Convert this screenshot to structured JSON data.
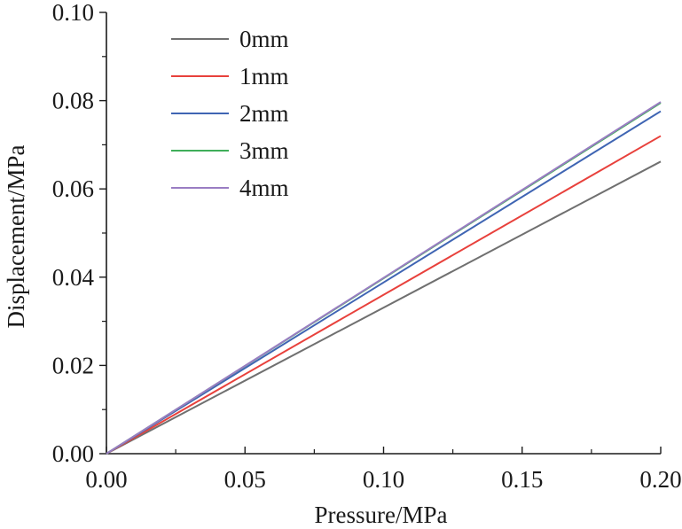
{
  "chart_data": {
    "type": "line",
    "title": "",
    "xlabel": "Pressure/MPa",
    "ylabel": "Displacement/MPa",
    "xlim": [
      0,
      0.2
    ],
    "ylim": [
      0,
      0.1
    ],
    "xticks": [
      "0.00",
      "0.05",
      "0.10",
      "0.15",
      "0.20"
    ],
    "yticks": [
      "0.00",
      "0.02",
      "0.04",
      "0.06",
      "0.08",
      "0.10"
    ],
    "grid": false,
    "legend_position": "top-left",
    "series": [
      {
        "name": "0mm",
        "color": "#707070",
        "x": [
          0,
          0.2
        ],
        "y": [
          0,
          0.0662
        ]
      },
      {
        "name": "1mm",
        "color": "#e8413c",
        "x": [
          0,
          0.2
        ],
        "y": [
          0,
          0.072
        ]
      },
      {
        "name": "2mm",
        "color": "#3f65b3",
        "x": [
          0,
          0.2
        ],
        "y": [
          0,
          0.0776
        ]
      },
      {
        "name": "3mm",
        "color": "#3fae5a",
        "x": [
          0,
          0.2
        ],
        "y": [
          0,
          0.0795
        ]
      },
      {
        "name": "4mm",
        "color": "#9a7dc3",
        "x": [
          0,
          0.2
        ],
        "y": [
          0,
          0.0797
        ]
      }
    ]
  }
}
